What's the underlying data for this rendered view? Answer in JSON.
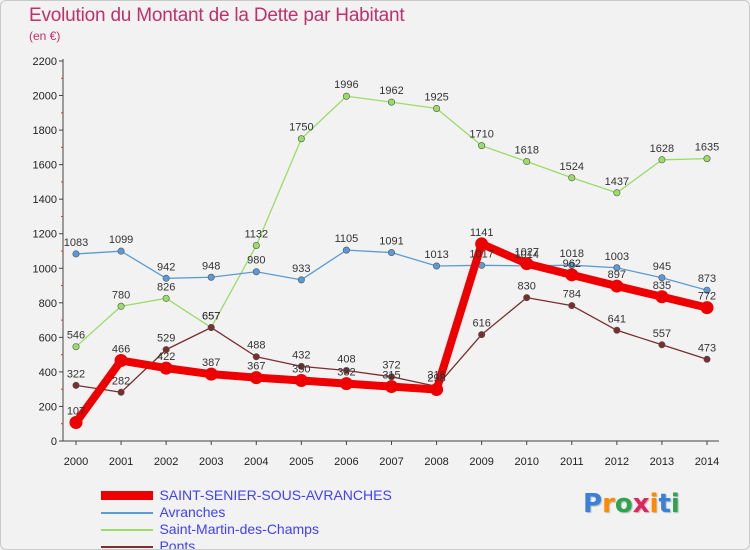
{
  "title": "Evolution du Montant de la Dette par Habitant",
  "subtitle": "(en €)",
  "brand": {
    "text": "Proxiti",
    "colors": [
      "#3a7fd8",
      "#ff8a00",
      "#2ea44f",
      "#e0245e",
      "#ff8a00",
      "#3a7fd8",
      "#2ea44f"
    ]
  },
  "chart_data": {
    "type": "line",
    "x": [
      "2000",
      "2001",
      "2002",
      "2003",
      "2004",
      "2005",
      "2006",
      "2007",
      "2008",
      "2009",
      "2010",
      "2011",
      "2012",
      "2013",
      "2014"
    ],
    "ylim": [
      0,
      2200
    ],
    "yticks": [
      "0",
      "200",
      "400",
      "600",
      "800",
      "1000",
      "1200",
      "1400",
      "1600",
      "1800",
      "2000",
      "2200"
    ],
    "grid": false,
    "legend_position": "bottom",
    "series": [
      {
        "name": "SAINT-SENIER-SOUS-AVRANCHES",
        "color": "#ee0000",
        "values": [
          107,
          466,
          422,
          387,
          367,
          350,
          332,
          315,
          298,
          1141,
          1027,
          962,
          897,
          835,
          772
        ],
        "labels": [
          "107",
          "466",
          "422",
          "387",
          "367",
          "350",
          "332",
          "315",
          "298",
          "1141",
          "1027",
          "962",
          "897",
          "835",
          "772"
        ]
      },
      {
        "name": "Avranches",
        "color": "#5b9bd5",
        "values": [
          1083,
          1099,
          942,
          948,
          980,
          933,
          1105,
          1091,
          1013,
          1017,
          1014,
          1018,
          1003,
          945,
          873
        ],
        "labels": [
          "1083",
          "1099",
          "942",
          "948",
          "980",
          "933",
          "1105",
          "1091",
          "1013",
          "1017",
          "1014",
          "1018",
          "1003",
          "945",
          "873"
        ]
      },
      {
        "name": "Saint-Martin-des-Champs",
        "color": "#99dd66",
        "values": [
          546,
          780,
          826,
          657,
          1132,
          1750,
          1996,
          1962,
          1925,
          1710,
          1618,
          1524,
          1437,
          1628,
          1635
        ],
        "labels": [
          "546",
          "780",
          "826",
          "657",
          "1132",
          "1750",
          "1996",
          "1962",
          "1925",
          "1710",
          "1618",
          "1524",
          "1437",
          "1628",
          "1635"
        ]
      },
      {
        "name": "Ponts",
        "color": "#7a2e2e",
        "values": [
          322,
          282,
          529,
          657,
          488,
          432,
          408,
          372,
          316,
          616,
          830,
          784,
          641,
          557,
          473
        ],
        "labels": [
          "322",
          "282",
          "529",
          "657",
          "488",
          "432",
          "408",
          "372",
          "316",
          "616",
          "830",
          "784",
          "641",
          "557",
          "473"
        ]
      }
    ]
  }
}
